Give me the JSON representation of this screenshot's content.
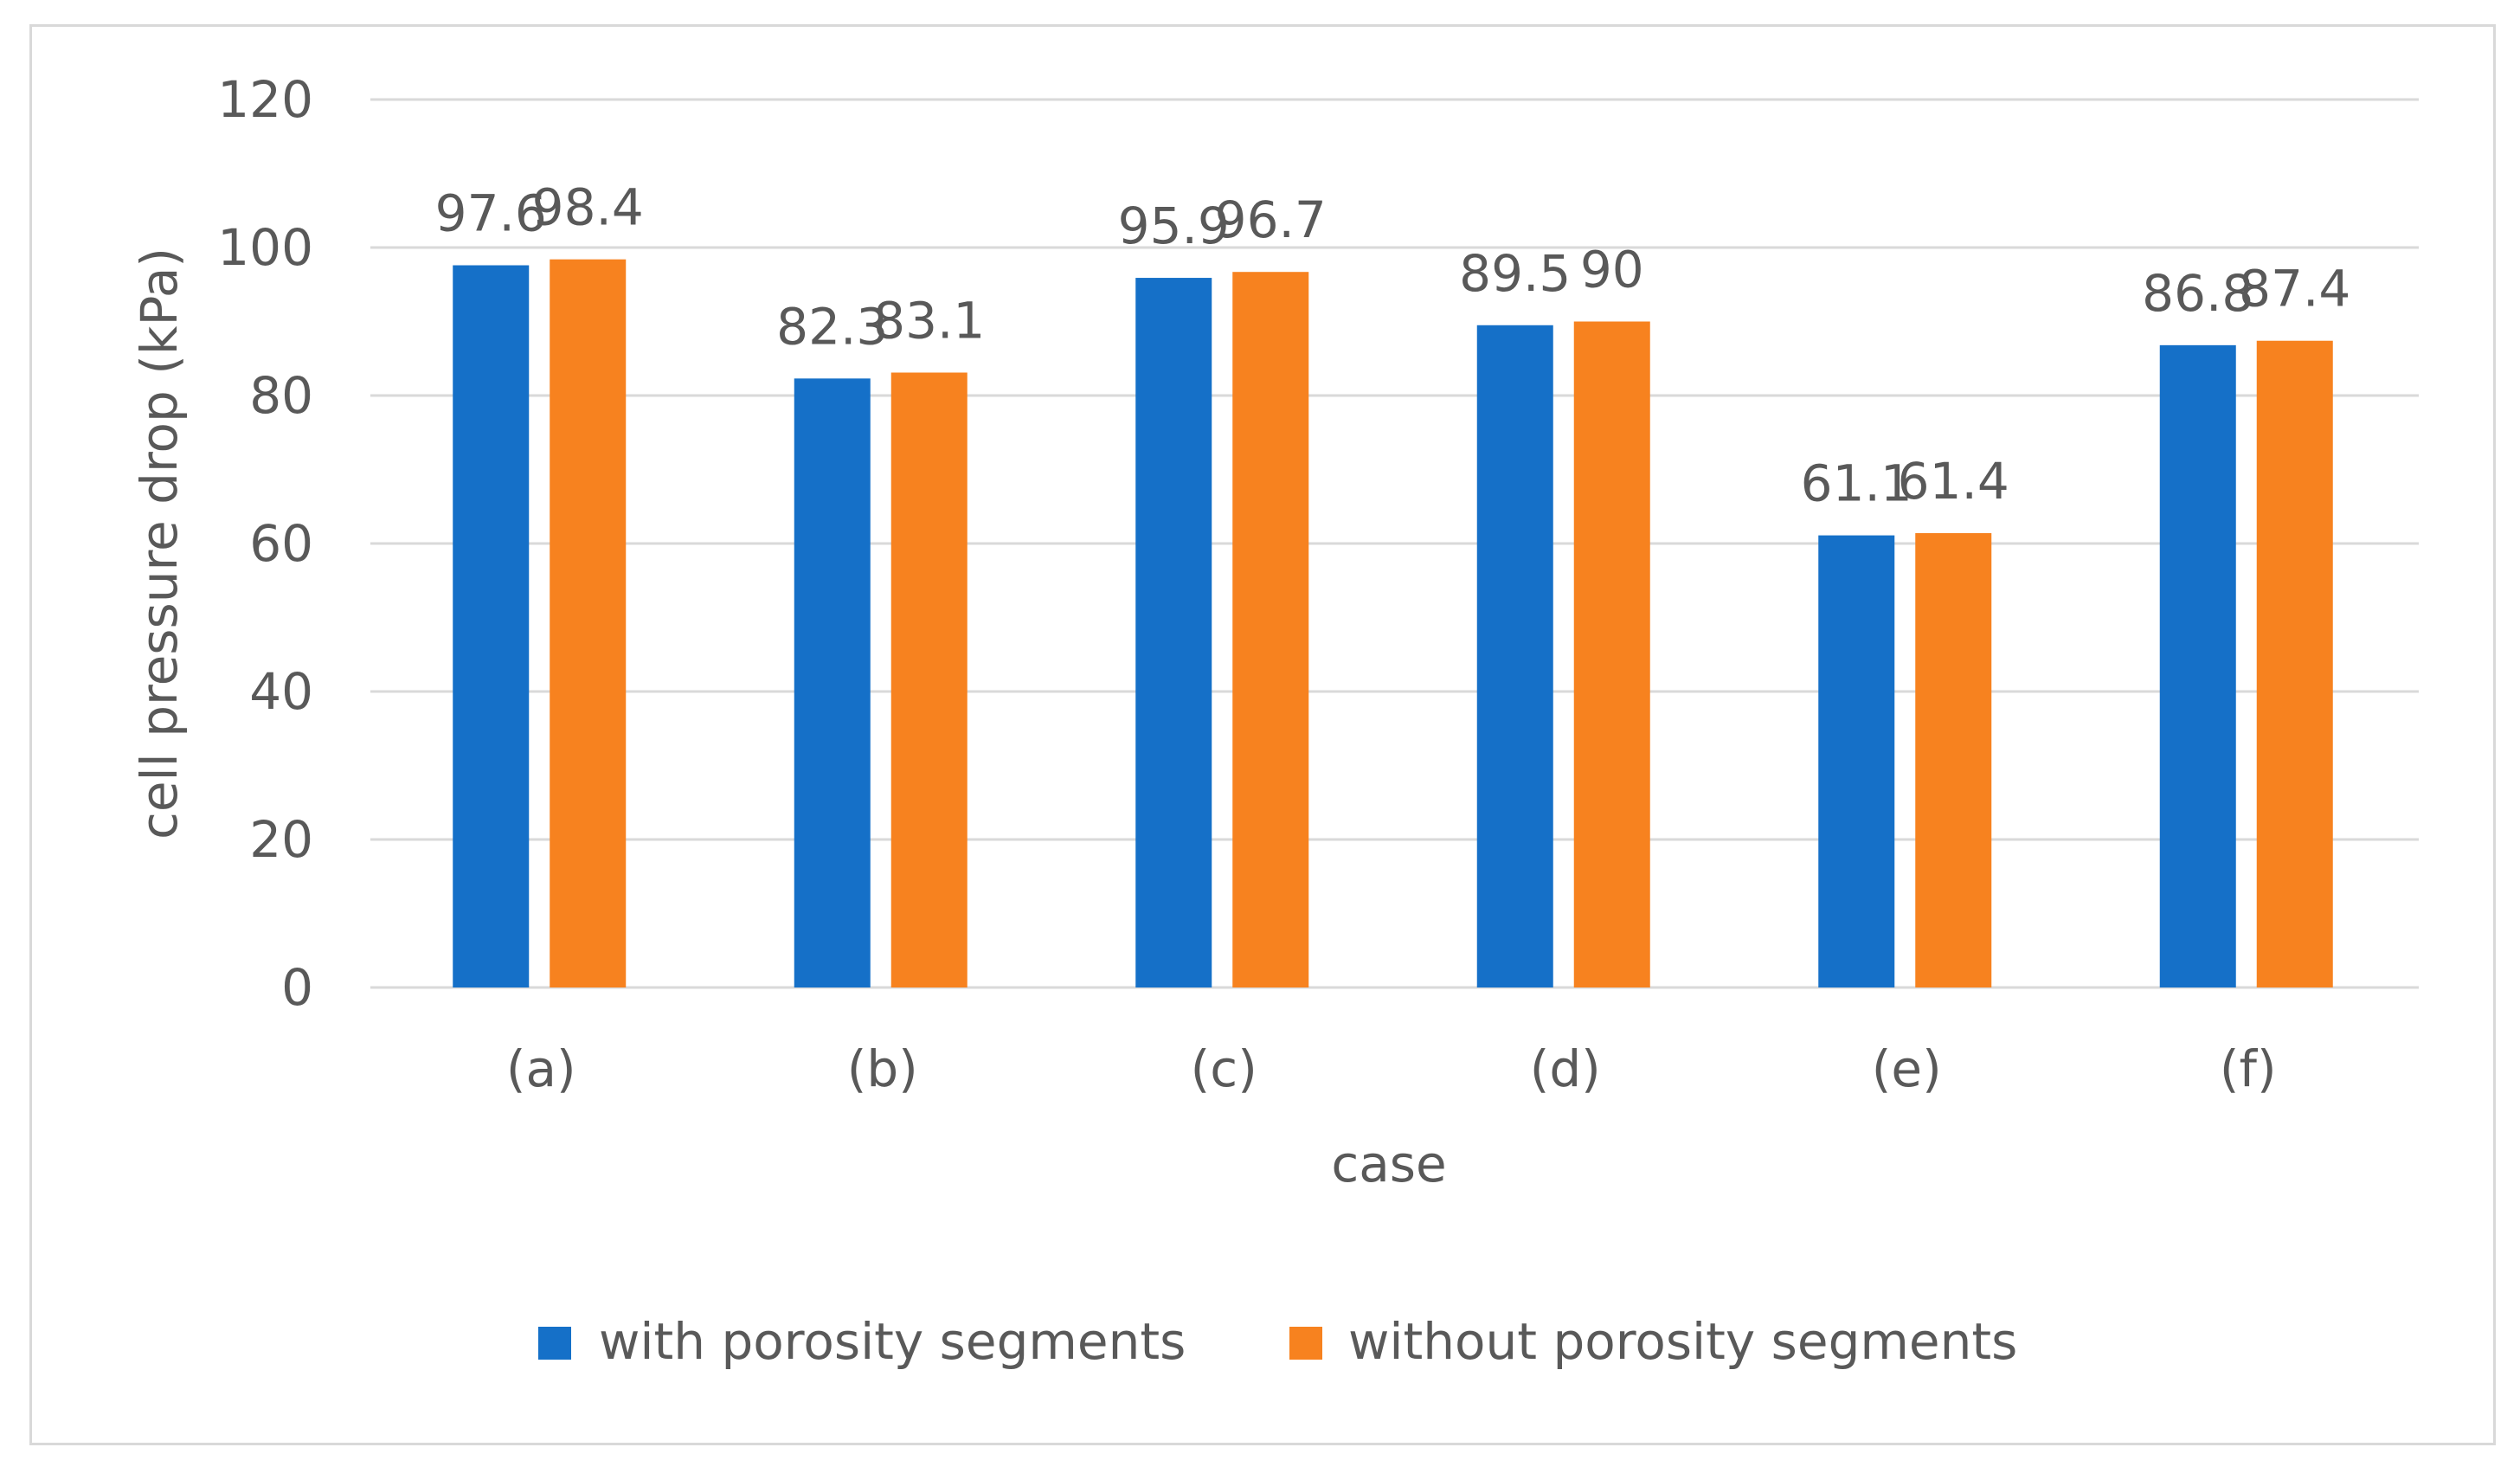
{
  "chart_data": {
    "type": "bar",
    "title": "",
    "xlabel": "case",
    "ylabel": "cell pressure drop (kPa)",
    "categories": [
      "(a)",
      "(b)",
      "(c)",
      "(d)",
      "(e)",
      "(f)"
    ],
    "ylim": [
      0,
      120
    ],
    "yticks": [
      0,
      20,
      40,
      60,
      80,
      100,
      120
    ],
    "ytick_labels": [
      "0",
      "20",
      "40",
      "60",
      "80",
      "100",
      "120"
    ],
    "grid": true,
    "legend_position": "bottom",
    "series": [
      {
        "name": "with porosity segments",
        "color": "#1570c8",
        "values": [
          97.6,
          82.3,
          95.9,
          89.5,
          61.1,
          86.8
        ],
        "labels": [
          "97.6",
          "82.3",
          "95.9",
          "89.5",
          "61.1",
          "86.8"
        ]
      },
      {
        "name": "without porosity segments",
        "color": "#f7821f",
        "values": [
          98.4,
          83.1,
          96.7,
          90,
          61.4,
          87.4
        ],
        "labels": [
          "98.4",
          "83.1",
          "96.7",
          "90",
          "61.4",
          "87.4"
        ]
      }
    ]
  }
}
